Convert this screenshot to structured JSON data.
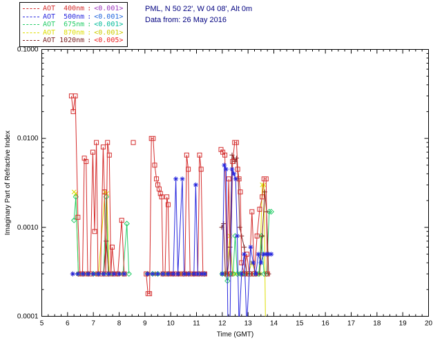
{
  "header": {
    "site_line": "PML, N 50 22', W 04 08', Alt 0m",
    "date_line": "Data from: 26 May 2016",
    "text_color": "#000080"
  },
  "legend": {
    "separator": ":",
    "entries": [
      {
        "label": "AOT  400nm",
        "value": "<0.001>",
        "color": "#d42a2a",
        "value_color": "#9933bb"
      },
      {
        "label": "AOT  500nm",
        "value": "<0.001>",
        "color": "#2626dd",
        "value_color": "#2266dd"
      },
      {
        "label": "AOT  675nm",
        "value": "<0.001>",
        "color": "#22cc66",
        "value_color": "#00bb99"
      },
      {
        "label": "AOT  870nm",
        "value": "<0.001>",
        "color": "#dddd00",
        "value_color": "#cccc00"
      },
      {
        "label": "AOT 1020nm",
        "value": "<0.005>",
        "color": "#7a2020",
        "value_color": "#ee2222"
      }
    ]
  },
  "chart_data": {
    "type": "line",
    "title": "",
    "xlabel": "Time (GMT)",
    "ylabel": "Imaginary Part of Refractive Index",
    "xlim": [
      5,
      20
    ],
    "ylim": [
      0.0001,
      0.1
    ],
    "yscale": "log",
    "grid": false,
    "legend_position": "top-left-outside",
    "xticks": {
      "values": [
        5,
        6,
        7,
        8,
        9,
        10,
        11,
        12,
        13,
        14,
        15,
        16,
        17,
        18,
        19,
        20
      ],
      "labels": [
        "5",
        "6",
        "7",
        "8",
        "9",
        "10",
        "11",
        "12",
        "13",
        "14",
        "15",
        "16",
        "17",
        "18",
        "19",
        "20"
      ]
    },
    "yticks": {
      "values": [
        0.0001,
        0.001,
        0.01,
        0.1
      ],
      "labels": [
        "0.0001",
        "0.0010",
        "0.0100",
        "0.1000"
      ]
    },
    "series": [
      {
        "name": "AOT 400nm",
        "wavelength_nm": 400,
        "color": "#d42a2a",
        "marker": "square",
        "z": 4,
        "points": [
          [
            6.15,
            0.03
          ],
          [
            6.22,
            0.02
          ],
          [
            6.3,
            0.03
          ],
          [
            6.4,
            0.0013
          ],
          [
            6.48,
            0.0003
          ],
          [
            6.58,
            0.0003
          ],
          [
            6.65,
            0.006
          ],
          [
            6.72,
            0.0055
          ],
          [
            6.78,
            0.0003
          ],
          [
            6.88,
            0.0003
          ],
          [
            6.98,
            0.007
          ],
          [
            7.05,
            0.0009
          ],
          [
            7.12,
            0.009
          ],
          [
            7.18,
            0.0003
          ],
          [
            7.28,
            0.0003
          ],
          [
            7.38,
            0.008
          ],
          [
            7.43,
            0.0025
          ],
          [
            7.48,
            0.0003
          ],
          [
            7.55,
            0.009
          ],
          [
            7.62,
            0.0065
          ],
          [
            7.68,
            0.0003
          ],
          [
            7.73,
            0.0006
          ],
          [
            7.82,
            0.0003
          ],
          [
            7.95,
            0.0003
          ],
          [
            8.1,
            0.0012
          ],
          [
            8.2,
            0.0003
          ],
          null,
          [
            8.55,
            0.009
          ],
          null,
          [
            9.05,
            0.0003
          ],
          [
            9.12,
            0.00018
          ],
          [
            9.18,
            0.00018
          ],
          [
            9.25,
            0.01
          ],
          [
            9.32,
            0.01
          ],
          [
            9.38,
            0.005
          ],
          [
            9.45,
            0.0035
          ],
          [
            9.5,
            0.003
          ],
          [
            9.55,
            0.0027
          ],
          [
            9.6,
            0.0024
          ],
          [
            9.65,
            0.0022
          ],
          [
            9.7,
            0.0003
          ],
          [
            9.78,
            0.0003
          ],
          [
            9.85,
            0.0022
          ],
          [
            9.9,
            0.0018
          ],
          [
            9.95,
            0.0003
          ],
          [
            10.05,
            0.0003
          ],
          [
            10.15,
            0.0003
          ],
          [
            10.25,
            0.0003
          ],
          [
            10.35,
            0.0003
          ],
          [
            10.45,
            0.0003
          ],
          [
            10.55,
            0.0003
          ],
          [
            10.62,
            0.0065
          ],
          [
            10.68,
            0.0045
          ],
          [
            10.75,
            0.0003
          ],
          [
            10.85,
            0.0003
          ],
          [
            10.95,
            0.0003
          ],
          [
            11.05,
            0.0003
          ],
          [
            11.12,
            0.0065
          ],
          [
            11.18,
            0.0045
          ],
          [
            11.25,
            0.0003
          ],
          [
            11.32,
            0.0003
          ],
          null,
          [
            11.95,
            0.0075
          ],
          [
            12.02,
            0.007
          ],
          [
            12.1,
            0.0065
          ],
          [
            12.18,
            0.0003
          ],
          [
            12.25,
            0.0035
          ],
          [
            12.32,
            0.0003
          ],
          [
            12.4,
            0.0055
          ],
          [
            12.48,
            0.009
          ],
          [
            12.55,
            0.009
          ],
          [
            12.6,
            0.0045
          ],
          [
            12.65,
            0.0035
          ],
          [
            12.7,
            0.0025
          ],
          [
            12.75,
            0.0004
          ],
          [
            12.85,
            0.0003
          ],
          [
            12.95,
            0.0005
          ],
          [
            13.05,
            0.0003
          ],
          [
            13.15,
            0.0015
          ],
          [
            13.25,
            0.0003
          ],
          [
            13.35,
            0.0008
          ],
          [
            13.45,
            0.0016
          ],
          [
            13.55,
            0.0022
          ],
          [
            13.62,
            0.0035
          ],
          [
            13.7,
            0.0035
          ],
          [
            13.75,
            0.0003
          ]
        ]
      },
      {
        "name": "AOT 500nm",
        "wavelength_nm": 500,
        "color": "#2626dd",
        "marker": "asterisk",
        "z": 5,
        "points": [
          [
            6.2,
            0.0003
          ],
          [
            6.4,
            0.0003
          ],
          [
            6.6,
            0.0003
          ],
          [
            6.8,
            0.0003
          ],
          [
            7.0,
            0.0003
          ],
          [
            7.2,
            0.0003
          ],
          [
            7.4,
            0.0003
          ],
          [
            7.6,
            0.0003
          ],
          [
            7.8,
            0.0003
          ],
          [
            8.0,
            0.0003
          ],
          [
            8.2,
            0.0003
          ],
          null,
          [
            9.1,
            0.0003
          ],
          [
            9.3,
            0.0003
          ],
          [
            9.5,
            0.0003
          ],
          [
            9.7,
            0.0003
          ],
          [
            9.9,
            0.0003
          ],
          [
            10.1,
            0.0003
          ],
          [
            10.2,
            0.0035
          ],
          [
            10.28,
            0.0003
          ],
          [
            10.45,
            0.0035
          ],
          [
            10.52,
            0.0003
          ],
          [
            10.7,
            0.0003
          ],
          [
            10.9,
            0.0003
          ],
          [
            10.97,
            0.003
          ],
          [
            11.05,
            0.0003
          ],
          [
            11.2,
            0.0003
          ],
          [
            11.32,
            0.0003
          ],
          null,
          [
            12.0,
            0.0003
          ],
          [
            12.08,
            0.005
          ],
          [
            12.15,
            0.0045
          ],
          [
            12.22,
            8e-05
          ],
          [
            12.3,
            8e-05
          ],
          [
            12.38,
            0.0045
          ],
          [
            12.45,
            0.004
          ],
          [
            12.52,
            0.0035
          ],
          [
            12.58,
            0.0008
          ],
          [
            12.65,
            8e-05
          ],
          [
            12.75,
            0.0003
          ],
          [
            12.85,
            0.0005
          ],
          [
            12.95,
            8e-05
          ],
          [
            13.1,
            0.0006
          ],
          [
            13.2,
            0.0004
          ],
          [
            13.3,
            0.0003
          ],
          [
            13.4,
            0.0005
          ],
          [
            13.5,
            0.0004
          ],
          [
            13.6,
            0.0005
          ],
          [
            13.7,
            0.0005
          ],
          [
            13.8,
            0.0005
          ],
          [
            13.9,
            0.0005
          ]
        ]
      },
      {
        "name": "AOT 675nm",
        "wavelength_nm": 675,
        "color": "#22cc66",
        "marker": "diamond",
        "z": 2,
        "points": [
          [
            6.25,
            0.0012
          ],
          [
            6.32,
            0.0022
          ],
          [
            6.42,
            0.0003
          ],
          [
            6.6,
            0.0003
          ],
          [
            6.8,
            0.0003
          ],
          [
            7.0,
            0.0003
          ],
          [
            7.2,
            0.0003
          ],
          [
            7.4,
            0.0003
          ],
          [
            7.5,
            0.0022
          ],
          [
            7.58,
            0.0003
          ],
          [
            7.75,
            0.0003
          ],
          [
            7.95,
            0.0003
          ],
          [
            8.15,
            0.0003
          ],
          [
            8.3,
            0.0011
          ],
          [
            8.38,
            0.0003
          ],
          null,
          [
            9.1,
            0.0003
          ],
          [
            9.3,
            0.0003
          ],
          [
            9.5,
            0.0003
          ],
          [
            9.7,
            0.0003
          ],
          [
            9.9,
            0.0003
          ],
          [
            10.1,
            0.0003
          ],
          [
            10.3,
            0.0003
          ],
          [
            10.5,
            0.0003
          ],
          [
            10.7,
            0.0003
          ],
          [
            10.9,
            0.0003
          ],
          [
            11.1,
            0.0003
          ],
          [
            11.3,
            0.0003
          ],
          null,
          [
            12.0,
            0.0003
          ],
          [
            12.1,
            0.0003
          ],
          [
            12.2,
            0.00025
          ],
          [
            12.3,
            0.0003
          ],
          [
            12.42,
            0.0003
          ],
          [
            12.5,
            0.0008
          ],
          [
            12.58,
            0.0003
          ],
          [
            12.7,
            0.0003
          ],
          [
            12.8,
            0.0003
          ],
          [
            12.9,
            0.0003
          ],
          [
            13.0,
            0.0003
          ],
          [
            13.1,
            0.0003
          ],
          [
            13.2,
            0.0003
          ],
          [
            13.3,
            0.0003
          ],
          [
            13.42,
            0.0003
          ],
          [
            13.52,
            0.0008
          ],
          [
            13.62,
            0.0003
          ],
          [
            13.72,
            0.0003
          ],
          [
            13.82,
            0.0015
          ],
          [
            13.9,
            0.0015
          ]
        ]
      },
      {
        "name": "AOT 870nm",
        "wavelength_nm": 870,
        "color": "#dddd00",
        "marker": "x",
        "z": 1,
        "points": [
          [
            6.25,
            0.0025
          ],
          [
            6.32,
            0.0024
          ],
          [
            6.42,
            0.0003
          ],
          [
            6.6,
            0.0003
          ],
          [
            6.8,
            0.0003
          ],
          [
            7.0,
            0.0003
          ],
          [
            7.2,
            0.0003
          ],
          [
            7.45,
            0.0025
          ],
          [
            7.52,
            0.0024
          ],
          [
            7.62,
            0.0003
          ],
          [
            7.8,
            0.0003
          ],
          [
            8.0,
            0.0003
          ],
          [
            8.2,
            0.0003
          ],
          null,
          [
            9.1,
            0.0003
          ],
          [
            9.35,
            0.0003
          ],
          [
            9.6,
            0.0003
          ],
          [
            9.85,
            0.0003
          ],
          [
            10.1,
            0.0003
          ],
          [
            10.35,
            0.0003
          ],
          [
            10.6,
            0.0003
          ],
          [
            10.85,
            0.0003
          ],
          [
            11.1,
            0.0003
          ],
          [
            11.3,
            0.0003
          ],
          null,
          [
            12.0,
            0.0003
          ],
          [
            12.15,
            0.0003
          ],
          [
            12.3,
            0.0008
          ],
          [
            12.4,
            0.0003
          ],
          [
            12.55,
            0.0003
          ],
          [
            12.7,
            0.0003
          ],
          [
            12.85,
            0.0003
          ],
          [
            13.0,
            0.0003
          ],
          [
            13.15,
            0.0004
          ],
          [
            13.3,
            0.0003
          ],
          [
            13.45,
            0.0003
          ],
          [
            13.55,
            0.003
          ],
          [
            13.62,
            0.003
          ],
          [
            13.68,
            6e-05
          ]
        ]
      },
      {
        "name": "AOT 1020nm",
        "wavelength_nm": 1020,
        "color": "#7a2020",
        "marker": "plus",
        "z": 3,
        "points": [
          [
            6.2,
            0.0003
          ],
          [
            6.5,
            0.0003
          ],
          [
            6.8,
            0.0003
          ],
          [
            7.1,
            0.0003
          ],
          [
            7.4,
            0.0003
          ],
          [
            7.5,
            0.0007
          ],
          [
            7.6,
            0.0003
          ],
          [
            7.9,
            0.0003
          ],
          [
            8.2,
            0.0003
          ],
          null,
          [
            9.1,
            0.0003
          ],
          [
            9.4,
            0.0003
          ],
          [
            9.7,
            0.0003
          ],
          [
            10.0,
            0.0003
          ],
          [
            10.3,
            0.0003
          ],
          [
            10.6,
            0.0003
          ],
          [
            10.9,
            0.0003
          ],
          [
            11.2,
            0.0003
          ],
          [
            11.32,
            0.0003
          ],
          null,
          [
            11.98,
            0.001
          ],
          [
            12.05,
            0.0011
          ],
          [
            12.12,
            0.0003
          ],
          [
            12.2,
            0.0003
          ],
          [
            12.3,
            0.0006
          ],
          [
            12.38,
            0.0065
          ],
          [
            12.45,
            0.006
          ],
          [
            12.5,
            0.0055
          ],
          [
            12.55,
            0.006
          ],
          [
            12.62,
            0.0035
          ],
          [
            12.68,
            0.001
          ],
          [
            12.75,
            0.0008
          ],
          [
            12.85,
            0.0006
          ],
          [
            12.95,
            0.0003
          ],
          [
            13.05,
            0.0003
          ],
          [
            13.15,
            0.0003
          ],
          [
            13.25,
            0.0003
          ],
          [
            13.35,
            0.0003
          ],
          [
            13.45,
            0.0003
          ],
          [
            13.55,
            0.0008
          ],
          [
            13.65,
            0.0025
          ],
          [
            13.72,
            0.0015
          ],
          [
            13.8,
            0.0003
          ]
        ]
      }
    ]
  }
}
